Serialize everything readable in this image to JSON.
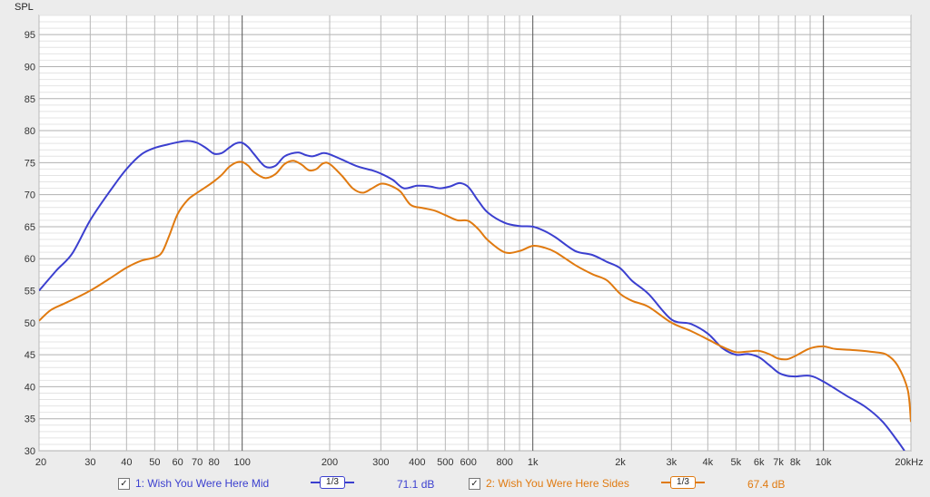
{
  "chart_data": {
    "type": "line",
    "ylabel": "SPL",
    "xscale": "log",
    "xlim": [
      20,
      20000
    ],
    "ylim": [
      30,
      98
    ],
    "y_ticks": [
      30,
      35,
      40,
      45,
      50,
      55,
      60,
      65,
      70,
      75,
      80,
      85,
      90,
      95
    ],
    "x_ticks": [
      {
        "v": 20,
        "label": "20"
      },
      {
        "v": 30,
        "label": "30"
      },
      {
        "v": 40,
        "label": "40"
      },
      {
        "v": 50,
        "label": "50"
      },
      {
        "v": 60,
        "label": "60"
      },
      {
        "v": 70,
        "label": "70"
      },
      {
        "v": 80,
        "label": "80"
      },
      {
        "v": 100,
        "label": "100"
      },
      {
        "v": 200,
        "label": "200"
      },
      {
        "v": 300,
        "label": "300"
      },
      {
        "v": 400,
        "label": "400"
      },
      {
        "v": 500,
        "label": "500"
      },
      {
        "v": 600,
        "label": "600"
      },
      {
        "v": 800,
        "label": "800"
      },
      {
        "v": 1000,
        "label": "1k"
      },
      {
        "v": 2000,
        "label": "2k"
      },
      {
        "v": 3000,
        "label": "3k"
      },
      {
        "v": 4000,
        "label": "4k"
      },
      {
        "v": 5000,
        "label": "5k"
      },
      {
        "v": 6000,
        "label": "6k"
      },
      {
        "v": 7000,
        "label": "7k"
      },
      {
        "v": 8000,
        "label": "8k"
      },
      {
        "v": 10000,
        "label": "10k"
      },
      {
        "v": 20000,
        "label": "20kHz"
      }
    ],
    "grid": true,
    "series": [
      {
        "name": "1: Wish You Were Here Mid",
        "color": "#3b3fcf",
        "smoothing": "1/3",
        "level": "71.1 dB",
        "points": [
          [
            20,
            55
          ],
          [
            23,
            58.2
          ],
          [
            26,
            60.8
          ],
          [
            30,
            66
          ],
          [
            35,
            70.5
          ],
          [
            40,
            74
          ],
          [
            45,
            76.3
          ],
          [
            50,
            77.3
          ],
          [
            55,
            77.8
          ],
          [
            60,
            78.2
          ],
          [
            65,
            78.4
          ],
          [
            70,
            78.1
          ],
          [
            75,
            77.3
          ],
          [
            80,
            76.4
          ],
          [
            85,
            76.5
          ],
          [
            90,
            77.3
          ],
          [
            95,
            78
          ],
          [
            100,
            78.1
          ],
          [
            105,
            77.4
          ],
          [
            110,
            76.3
          ],
          [
            120,
            74.4
          ],
          [
            130,
            74.5
          ],
          [
            140,
            76
          ],
          [
            155,
            76.6
          ],
          [
            165,
            76.2
          ],
          [
            175,
            76
          ],
          [
            190,
            76.5
          ],
          [
            200,
            76.3
          ],
          [
            220,
            75.5
          ],
          [
            250,
            74.4
          ],
          [
            280,
            73.8
          ],
          [
            300,
            73.3
          ],
          [
            330,
            72.3
          ],
          [
            360,
            71
          ],
          [
            400,
            71.4
          ],
          [
            440,
            71.3
          ],
          [
            480,
            71
          ],
          [
            520,
            71.3
          ],
          [
            560,
            71.8
          ],
          [
            600,
            71.2
          ],
          [
            650,
            69
          ],
          [
            700,
            67.2
          ],
          [
            800,
            65.6
          ],
          [
            900,
            65.1
          ],
          [
            1000,
            65
          ],
          [
            1100,
            64.3
          ],
          [
            1200,
            63.3
          ],
          [
            1400,
            61.2
          ],
          [
            1600,
            60.6
          ],
          [
            1800,
            59.5
          ],
          [
            2000,
            58.5
          ],
          [
            2200,
            56.5
          ],
          [
            2500,
            54.5
          ],
          [
            3000,
            50.5
          ],
          [
            3500,
            49.8
          ],
          [
            4000,
            48.3
          ],
          [
            4500,
            46
          ],
          [
            5000,
            45
          ],
          [
            5500,
            45.1
          ],
          [
            6000,
            44.6
          ],
          [
            6500,
            43.4
          ],
          [
            7000,
            42.2
          ],
          [
            7500,
            41.7
          ],
          [
            8000,
            41.6
          ],
          [
            9000,
            41.7
          ],
          [
            10000,
            40.8
          ],
          [
            12000,
            38.6
          ],
          [
            14000,
            36.8
          ],
          [
            16000,
            34.5
          ],
          [
            18000,
            31.5
          ],
          [
            19000,
            30
          ]
        ]
      },
      {
        "name": "2: Wish You Were Here Sides",
        "color": "#e07a10",
        "smoothing": "1/3",
        "level": "67.4 dB",
        "points": [
          [
            20,
            50.3
          ],
          [
            22,
            52
          ],
          [
            25,
            53.2
          ],
          [
            30,
            55
          ],
          [
            35,
            56.9
          ],
          [
            40,
            58.6
          ],
          [
            45,
            59.7
          ],
          [
            50,
            60.2
          ],
          [
            53,
            61
          ],
          [
            56,
            63.5
          ],
          [
            60,
            67
          ],
          [
            65,
            69.2
          ],
          [
            70,
            70.3
          ],
          [
            75,
            71.2
          ],
          [
            80,
            72.1
          ],
          [
            85,
            73.1
          ],
          [
            90,
            74.3
          ],
          [
            95,
            75
          ],
          [
            100,
            75.1
          ],
          [
            105,
            74.5
          ],
          [
            110,
            73.5
          ],
          [
            120,
            72.6
          ],
          [
            130,
            73.2
          ],
          [
            140,
            74.8
          ],
          [
            150,
            75.3
          ],
          [
            160,
            74.7
          ],
          [
            170,
            73.8
          ],
          [
            180,
            74
          ],
          [
            190,
            74.9
          ],
          [
            200,
            74.8
          ],
          [
            220,
            73
          ],
          [
            240,
            71
          ],
          [
            260,
            70.3
          ],
          [
            280,
            71
          ],
          [
            300,
            71.7
          ],
          [
            320,
            71.5
          ],
          [
            350,
            70.5
          ],
          [
            380,
            68.4
          ],
          [
            420,
            67.9
          ],
          [
            460,
            67.5
          ],
          [
            500,
            66.8
          ],
          [
            550,
            66
          ],
          [
            600,
            65.9
          ],
          [
            650,
            64.6
          ],
          [
            700,
            62.9
          ],
          [
            800,
            61
          ],
          [
            900,
            61.2
          ],
          [
            1000,
            62
          ],
          [
            1100,
            61.7
          ],
          [
            1200,
            61
          ],
          [
            1400,
            59
          ],
          [
            1600,
            57.6
          ],
          [
            1800,
            56.6
          ],
          [
            2000,
            54.5
          ],
          [
            2200,
            53.4
          ],
          [
            2500,
            52.5
          ],
          [
            3000,
            50
          ],
          [
            3500,
            48.7
          ],
          [
            4000,
            47.4
          ],
          [
            4500,
            46.2
          ],
          [
            5000,
            45.4
          ],
          [
            5500,
            45.5
          ],
          [
            6000,
            45.6
          ],
          [
            6500,
            45.1
          ],
          [
            7000,
            44.4
          ],
          [
            7500,
            44.3
          ],
          [
            8000,
            44.8
          ],
          [
            9000,
            46
          ],
          [
            10000,
            46.3
          ],
          [
            11000,
            45.9
          ],
          [
            13000,
            45.7
          ],
          [
            15000,
            45.4
          ],
          [
            16500,
            45
          ],
          [
            18000,
            43.3
          ],
          [
            19500,
            39.5
          ],
          [
            20000,
            34.5
          ]
        ]
      }
    ]
  },
  "legend": {
    "items": [
      {
        "label": "1: Wish You Were Here Mid",
        "smoothing": "1/3",
        "level": "71.1 dB",
        "color": "#3b3fcf",
        "checked": "✓"
      },
      {
        "label": "2: Wish You Were Here Sides",
        "smoothing": "1/3",
        "level": "67.4 dB",
        "color": "#e07a10",
        "checked": "✓"
      }
    ]
  }
}
